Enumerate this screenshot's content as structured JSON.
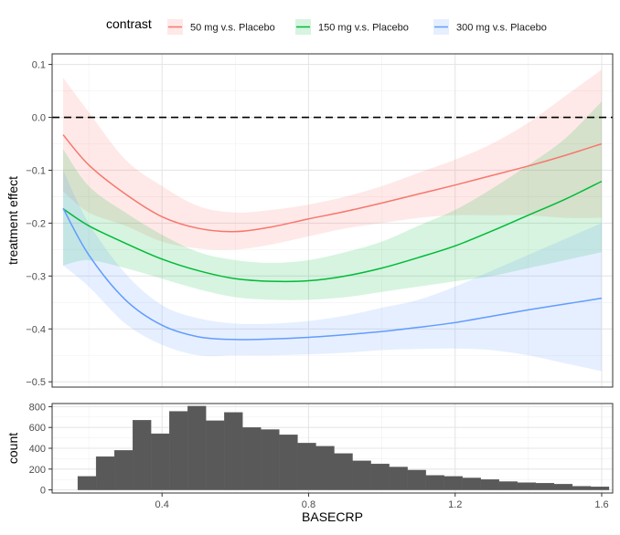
{
  "chart_data": [
    {
      "type": "line",
      "title": "",
      "xlabel": "",
      "ylabel": "treatment effect",
      "xlim": [
        0.1,
        1.63
      ],
      "ylim": [
        -0.51,
        0.12
      ],
      "y_ticks": [
        0.1,
        0.0,
        -0.1,
        -0.2,
        -0.3,
        -0.4,
        -0.5
      ],
      "y_tick_labels": [
        "0.1",
        "0.0",
        "−0.1",
        "−0.2",
        "−0.3",
        "−0.4",
        "−0.5"
      ],
      "x_ticks": [
        0.4,
        0.8,
        1.2,
        1.6
      ],
      "grid": true,
      "reference_line": {
        "y": 0.0,
        "style": "dashed"
      },
      "legend": {
        "title": "contrast",
        "position": "top",
        "entries": [
          "50 mg v.s. Placebo",
          "150 mg v.s. Placebo",
          "300 mg v.s. Placebo"
        ]
      },
      "x": [
        0.13,
        0.2,
        0.3,
        0.4,
        0.5,
        0.6,
        0.7,
        0.8,
        0.9,
        1.0,
        1.1,
        1.2,
        1.3,
        1.4,
        1.5,
        1.6
      ],
      "series": [
        {
          "name": "50 mg v.s. Placebo",
          "color": "#F8766D",
          "values": [
            -0.033,
            -0.09,
            -0.145,
            -0.188,
            -0.21,
            -0.216,
            -0.207,
            -0.192,
            -0.178,
            -0.162,
            -0.145,
            -0.128,
            -0.11,
            -0.092,
            -0.072,
            -0.05
          ],
          "upper": [
            0.075,
            0.01,
            -0.08,
            -0.13,
            -0.168,
            -0.18,
            -0.175,
            -0.165,
            -0.15,
            -0.13,
            -0.105,
            -0.08,
            -0.05,
            -0.01,
            0.04,
            0.09
          ],
          "lower": [
            -0.14,
            -0.18,
            -0.205,
            -0.235,
            -0.248,
            -0.25,
            -0.24,
            -0.225,
            -0.21,
            -0.2,
            -0.19,
            -0.185,
            -0.185,
            -0.185,
            -0.19,
            -0.19
          ]
        },
        {
          "name": "150 mg v.s. Placebo",
          "color": "#00BA38",
          "values": [
            -0.173,
            -0.205,
            -0.238,
            -0.268,
            -0.29,
            -0.305,
            -0.31,
            -0.309,
            -0.3,
            -0.285,
            -0.265,
            -0.243,
            -0.215,
            -0.185,
            -0.155,
            -0.121
          ],
          "upper": [
            -0.06,
            -0.13,
            -0.18,
            -0.222,
            -0.255,
            -0.27,
            -0.275,
            -0.27,
            -0.255,
            -0.235,
            -0.205,
            -0.175,
            -0.135,
            -0.09,
            -0.04,
            0.03
          ],
          "lower": [
            -0.28,
            -0.27,
            -0.285,
            -0.305,
            -0.325,
            -0.34,
            -0.345,
            -0.345,
            -0.34,
            -0.33,
            -0.32,
            -0.31,
            -0.3,
            -0.285,
            -0.27,
            -0.255
          ]
        },
        {
          "name": "300 mg v.s. Placebo",
          "color": "#619CFF",
          "values": [
            -0.172,
            -0.26,
            -0.345,
            -0.393,
            -0.415,
            -0.42,
            -0.419,
            -0.416,
            -0.411,
            -0.405,
            -0.397,
            -0.388,
            -0.376,
            -0.364,
            -0.353,
            -0.342
          ],
          "upper": [
            -0.1,
            -0.2,
            -0.295,
            -0.355,
            -0.38,
            -0.39,
            -0.39,
            -0.385,
            -0.375,
            -0.36,
            -0.345,
            -0.32,
            -0.29,
            -0.26,
            -0.23,
            -0.2
          ],
          "lower": [
            -0.28,
            -0.32,
            -0.39,
            -0.43,
            -0.45,
            -0.45,
            -0.45,
            -0.448,
            -0.445,
            -0.44,
            -0.438,
            -0.437,
            -0.44,
            -0.45,
            -0.465,
            -0.48
          ]
        }
      ]
    },
    {
      "type": "bar",
      "title": "",
      "xlabel": "BASECRP",
      "ylabel": "count",
      "xlim": [
        0.1,
        1.63
      ],
      "ylim": [
        -30,
        830
      ],
      "y_ticks": [
        0,
        200,
        400,
        600,
        800
      ],
      "y_tick_labels": [
        "0",
        "200",
        "400",
        "600",
        "800"
      ],
      "x_ticks": [
        0.4,
        0.8,
        1.2,
        1.6
      ],
      "x_tick_labels": [
        "0.4",
        "0.8",
        "1.2",
        "1.6"
      ],
      "grid": true,
      "bar_color": "#595959",
      "bin_edges": [
        0.17,
        0.22,
        0.27,
        0.32,
        0.37,
        0.42,
        0.47,
        0.52,
        0.57,
        0.62,
        0.67,
        0.72,
        0.77,
        0.82,
        0.87,
        0.92,
        0.97,
        1.02,
        1.07,
        1.12,
        1.17,
        1.22,
        1.27,
        1.32,
        1.37,
        1.42,
        1.47,
        1.52,
        1.57,
        1.62
      ],
      "values": [
        130,
        320,
        380,
        670,
        540,
        755,
        805,
        665,
        745,
        600,
        580,
        530,
        450,
        420,
        350,
        280,
        250,
        220,
        190,
        140,
        130,
        115,
        100,
        80,
        70,
        65,
        55,
        35,
        30
      ]
    }
  ]
}
